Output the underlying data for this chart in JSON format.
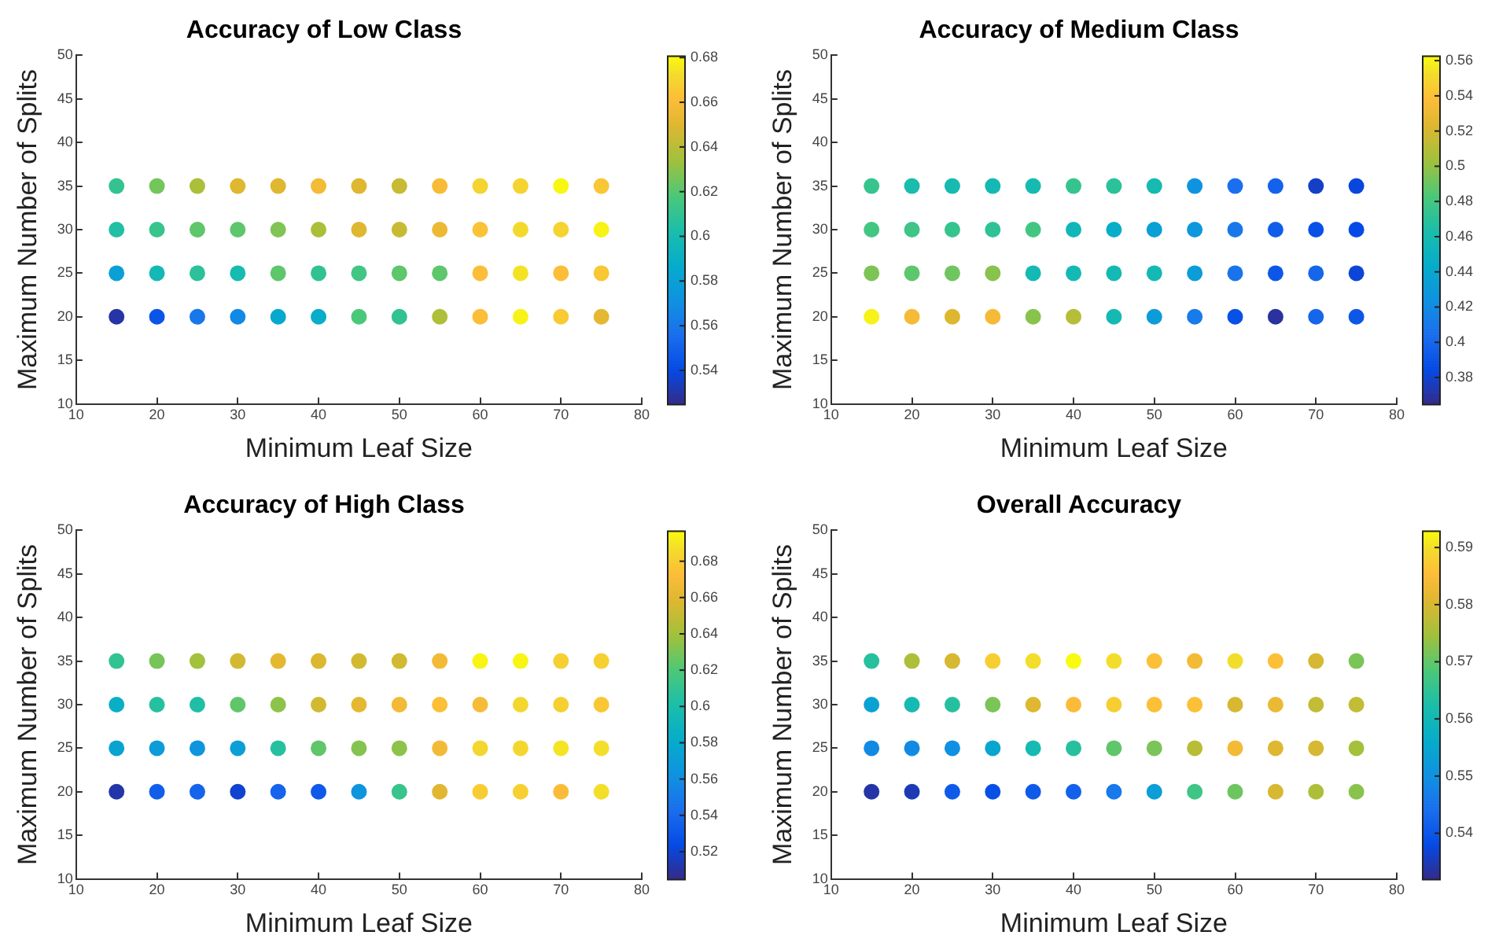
{
  "chart_data": [
    {
      "type": "scatter",
      "title": "Accuracy of Low Class",
      "xlabel": "Minimum Leaf Size",
      "ylabel": "Maximum Number of Splits",
      "marker": "circle",
      "grid": false,
      "x": [
        15,
        20,
        25,
        30,
        35,
        40,
        45,
        50,
        55,
        60,
        65,
        70,
        75,
        15,
        20,
        25,
        30,
        35,
        40,
        45,
        50,
        55,
        60,
        65,
        70,
        75,
        15,
        20,
        25,
        30,
        35,
        40,
        45,
        50,
        55,
        60,
        65,
        70,
        75,
        15,
        20,
        25,
        30,
        35,
        40,
        45,
        50,
        55,
        60,
        65,
        70,
        75
      ],
      "values": [
        20,
        20,
        20,
        20,
        20,
        20,
        20,
        20,
        20,
        20,
        20,
        20,
        20,
        25,
        25,
        25,
        25,
        25,
        25,
        25,
        25,
        25,
        25,
        25,
        25,
        25,
        30,
        30,
        30,
        30,
        30,
        30,
        30,
        30,
        30,
        30,
        30,
        30,
        30,
        35,
        35,
        35,
        35,
        35,
        35,
        35,
        35,
        35,
        35,
        35,
        35,
        35
      ],
      "cvalues": [
        0.53,
        0.545,
        0.56,
        0.568,
        0.585,
        0.588,
        0.618,
        0.61,
        0.638,
        0.662,
        0.679,
        0.667,
        0.652,
        0.58,
        0.598,
        0.608,
        0.6,
        0.622,
        0.61,
        0.615,
        0.622,
        0.622,
        0.662,
        0.675,
        0.662,
        0.665,
        0.605,
        0.612,
        0.622,
        0.622,
        0.628,
        0.637,
        0.65,
        0.644,
        0.655,
        0.664,
        0.672,
        0.67,
        0.679,
        0.611,
        0.626,
        0.637,
        0.65,
        0.65,
        0.658,
        0.65,
        0.644,
        0.66,
        0.67,
        0.67,
        0.68,
        0.665
      ],
      "xlim": [
        10,
        80
      ],
      "xticks": [
        10,
        20,
        30,
        40,
        50,
        60,
        70,
        80
      ],
      "ylim": [
        10,
        50
      ],
      "yticks": [
        10,
        15,
        20,
        25,
        30,
        35,
        40,
        45,
        50
      ],
      "clim": [
        0.525,
        0.681
      ],
      "cticks": [
        0.54,
        0.56,
        0.58,
        0.6,
        0.62,
        0.64,
        0.66,
        0.68
      ]
    },
    {
      "type": "scatter",
      "title": "Accuracy of Medium Class",
      "xlabel": "Minimum Leaf Size",
      "ylabel": "Maximum Number of Splits",
      "marker": "circle",
      "grid": false,
      "x": [
        15,
        20,
        25,
        30,
        35,
        40,
        45,
        50,
        55,
        60,
        65,
        70,
        75,
        15,
        20,
        25,
        30,
        35,
        40,
        45,
        50,
        55,
        60,
        65,
        70,
        75,
        15,
        20,
        25,
        30,
        35,
        40,
        45,
        50,
        55,
        60,
        65,
        70,
        75,
        15,
        20,
        25,
        30,
        35,
        40,
        45,
        50,
        55,
        60,
        65,
        70,
        75
      ],
      "values": [
        20,
        20,
        20,
        20,
        20,
        20,
        20,
        20,
        20,
        20,
        20,
        20,
        20,
        25,
        25,
        25,
        25,
        25,
        25,
        25,
        25,
        25,
        25,
        25,
        25,
        25,
        30,
        30,
        30,
        30,
        30,
        30,
        30,
        30,
        30,
        30,
        30,
        30,
        30,
        35,
        35,
        35,
        35,
        35,
        35,
        35,
        35,
        35,
        35,
        35,
        35,
        35
      ],
      "cvalues": [
        0.56,
        0.535,
        0.523,
        0.535,
        0.498,
        0.51,
        0.458,
        0.432,
        0.412,
        0.388,
        0.37,
        0.4,
        0.392,
        0.495,
        0.488,
        0.492,
        0.498,
        0.458,
        0.458,
        0.458,
        0.458,
        0.432,
        0.408,
        0.392,
        0.4,
        0.382,
        0.48,
        0.478,
        0.475,
        0.472,
        0.48,
        0.455,
        0.445,
        0.435,
        0.428,
        0.41,
        0.395,
        0.388,
        0.385,
        0.475,
        0.462,
        0.46,
        0.458,
        0.46,
        0.475,
        0.47,
        0.46,
        0.425,
        0.405,
        0.398,
        0.378,
        0.383
      ],
      "xlim": [
        10,
        80
      ],
      "xticks": [
        10,
        20,
        30,
        40,
        50,
        60,
        70,
        80
      ],
      "ylim": [
        10,
        50
      ],
      "yticks": [
        10,
        15,
        20,
        25,
        30,
        35,
        40,
        45,
        50
      ],
      "clim": [
        0.365,
        0.563
      ],
      "cticks": [
        0.38,
        0.4,
        0.42,
        0.44,
        0.46,
        0.48,
        0.5,
        0.52,
        0.54,
        0.56
      ]
    },
    {
      "type": "scatter",
      "title": "Accuracy of High Class",
      "xlabel": "Minimum Leaf Size",
      "ylabel": "Maximum Number of Splits",
      "marker": "circle",
      "grid": false,
      "x": [
        15,
        20,
        25,
        30,
        35,
        40,
        45,
        50,
        55,
        60,
        65,
        70,
        75,
        15,
        20,
        25,
        30,
        35,
        40,
        45,
        50,
        55,
        60,
        65,
        70,
        75,
        15,
        20,
        25,
        30,
        35,
        40,
        45,
        50,
        55,
        60,
        65,
        70,
        75,
        15,
        20,
        25,
        30,
        35,
        40,
        45,
        50,
        55,
        60,
        65,
        70,
        75
      ],
      "values": [
        20,
        20,
        20,
        20,
        20,
        20,
        20,
        20,
        20,
        20,
        20,
        20,
        20,
        25,
        25,
        25,
        25,
        25,
        25,
        25,
        25,
        25,
        25,
        25,
        25,
        25,
        30,
        30,
        30,
        30,
        30,
        30,
        30,
        30,
        30,
        30,
        30,
        30,
        30,
        35,
        35,
        35,
        35,
        35,
        35,
        35,
        35,
        35,
        35,
        35,
        35,
        35
      ],
      "cvalues": [
        0.512,
        0.535,
        0.538,
        0.52,
        0.538,
        0.532,
        0.565,
        0.612,
        0.66,
        0.68,
        0.682,
        0.672,
        0.688,
        0.575,
        0.57,
        0.565,
        0.572,
        0.605,
        0.625,
        0.633,
        0.635,
        0.668,
        0.685,
        0.685,
        0.69,
        0.688,
        0.585,
        0.605,
        0.603,
        0.625,
        0.635,
        0.655,
        0.662,
        0.668,
        0.675,
        0.67,
        0.685,
        0.682,
        0.678,
        0.61,
        0.63,
        0.64,
        0.655,
        0.662,
        0.658,
        0.655,
        0.655,
        0.668,
        0.695,
        0.695,
        0.682,
        0.682
      ],
      "xlim": [
        10,
        80
      ],
      "xticks": [
        10,
        20,
        30,
        40,
        50,
        60,
        70,
        80
      ],
      "ylim": [
        10,
        50
      ],
      "yticks": [
        10,
        15,
        20,
        25,
        30,
        35,
        40,
        45,
        50
      ],
      "clim": [
        0.505,
        0.697
      ],
      "cticks": [
        0.52,
        0.54,
        0.56,
        0.58,
        0.6,
        0.62,
        0.64,
        0.66,
        0.68
      ]
    },
    {
      "type": "scatter",
      "title": "Overall Accuracy",
      "xlabel": "Minimum Leaf Size",
      "ylabel": "Maximum Number of Splits",
      "marker": "circle",
      "grid": false,
      "x": [
        15,
        20,
        25,
        30,
        35,
        40,
        45,
        50,
        55,
        60,
        65,
        70,
        75,
        15,
        20,
        25,
        30,
        35,
        40,
        45,
        50,
        55,
        60,
        65,
        70,
        75,
        15,
        20,
        25,
        30,
        35,
        40,
        45,
        50,
        55,
        60,
        65,
        70,
        75,
        15,
        20,
        25,
        30,
        35,
        40,
        45,
        50,
        55,
        60,
        65,
        70,
        75
      ],
      "values": [
        20,
        20,
        20,
        20,
        20,
        20,
        20,
        20,
        20,
        20,
        20,
        20,
        20,
        25,
        25,
        25,
        25,
        25,
        25,
        25,
        25,
        25,
        25,
        25,
        25,
        25,
        30,
        30,
        30,
        30,
        30,
        30,
        30,
        30,
        30,
        30,
        30,
        30,
        30,
        35,
        35,
        35,
        35,
        35,
        35,
        35,
        35,
        35,
        35,
        35,
        35,
        35
      ],
      "cvalues": [
        0.534,
        0.535,
        0.541,
        0.539,
        0.541,
        0.542,
        0.546,
        0.553,
        0.567,
        0.571,
        0.58,
        0.576,
        0.573,
        0.549,
        0.549,
        0.55,
        0.555,
        0.561,
        0.564,
        0.57,
        0.572,
        0.577,
        0.584,
        0.581,
        0.58,
        0.575,
        0.554,
        0.561,
        0.564,
        0.572,
        0.581,
        0.585,
        0.588,
        0.586,
        0.586,
        0.58,
        0.583,
        0.578,
        0.578,
        0.564,
        0.576,
        0.58,
        0.588,
        0.59,
        0.593,
        0.59,
        0.586,
        0.584,
        0.59,
        0.586,
        0.58,
        0.572
      ],
      "xlim": [
        10,
        80
      ],
      "xticks": [
        10,
        20,
        30,
        40,
        50,
        60,
        70,
        80
      ],
      "ylim": [
        10,
        50
      ],
      "yticks": [
        10,
        15,
        20,
        25,
        30,
        35,
        40,
        45,
        50
      ],
      "clim": [
        0.532,
        0.593
      ],
      "cticks": [
        0.54,
        0.55,
        0.56,
        0.57,
        0.58,
        0.59
      ]
    }
  ]
}
